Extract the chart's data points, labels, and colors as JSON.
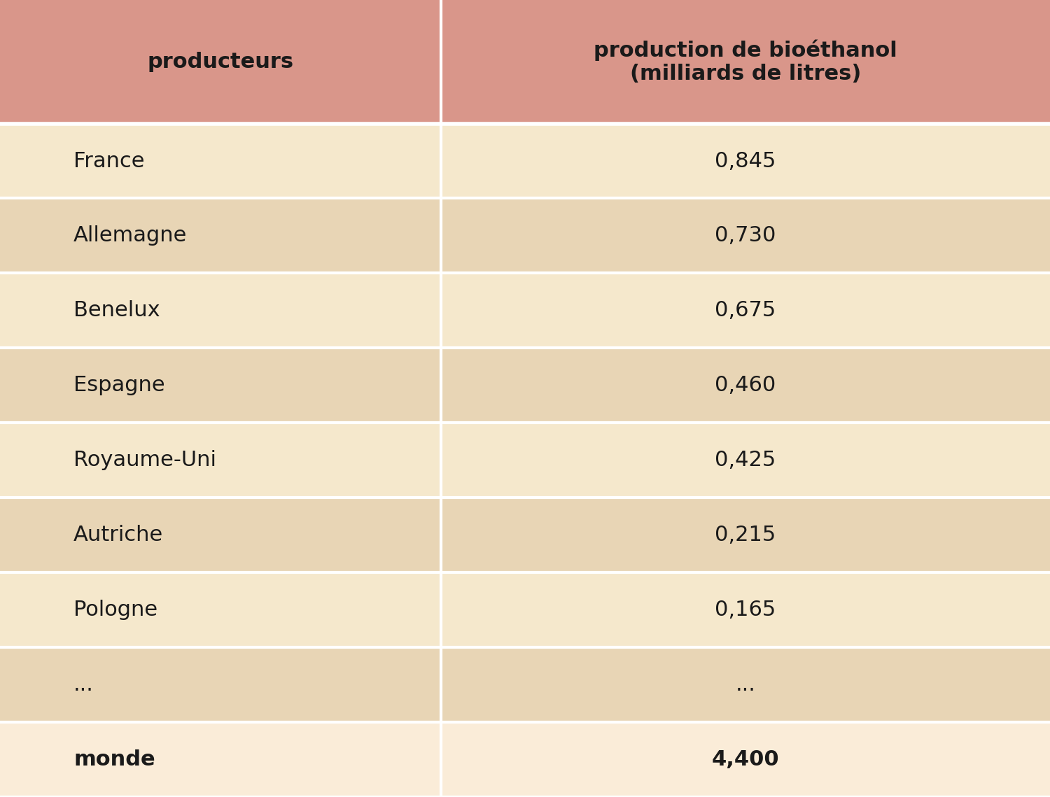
{
  "header_bg": "#d9968a",
  "row_bg_odd": "#e8d5b5",
  "row_bg_even": "#f5e8cc",
  "last_row_bg": "#faecd8",
  "divider_color": "#ffffff",
  "text_color": "#1a1a1a",
  "col1_header": "producteurs",
  "col2_header": "production de bioéthanol\n(milliards de litres)",
  "rows": [
    [
      "France",
      "0,845"
    ],
    [
      "Allemagne",
      "0,730"
    ],
    [
      "Benelux",
      "0,675"
    ],
    [
      "Espagne",
      "0,460"
    ],
    [
      "Royaume-Uni",
      "0,425"
    ],
    [
      "Autriche",
      "0,215"
    ],
    [
      "Pologne",
      "0,165"
    ],
    [
      "...",
      "..."
    ],
    [
      "monde",
      "4,400"
    ]
  ],
  "bold_last_row": true,
  "col_split": 0.42,
  "header_fontsize": 22,
  "row_fontsize": 22,
  "fig_width": 15.0,
  "fig_height": 11.39
}
